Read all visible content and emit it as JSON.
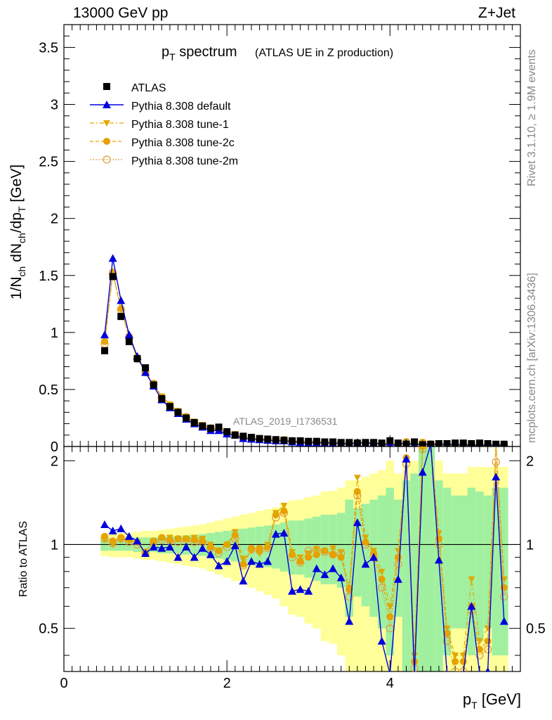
{
  "header": {
    "left": "13000 GeV pp",
    "right": "Z+Jet"
  },
  "side_text": {
    "rivet": "Rivet 3.1.10, ≥ 1.9M events",
    "mcplots": "mcplots.cern.ch [arXiv:1306.3436]"
  },
  "colors": {
    "data": "#000000",
    "default": "#0000dd",
    "tune1": "#e0a800",
    "tune2c": "#e8a000",
    "tune2m": "#e0a040",
    "band_inner": "#a0f0a0",
    "band_outer": "#ffff99"
  },
  "chart_data": {
    "type": "line",
    "title_main": "p",
    "title_main_sub": "T",
    "title_main_rest": " spectrum",
    "title_note": "(ATLAS UE in Z production)",
    "watermark": "ATLAS_2019_I1736531",
    "xlabel": "p",
    "xlabel_sub": "T",
    "xlabel_rest": " [GeV]",
    "ylabel_top": "1/N",
    "ylabel_top_full": "1/N_ch dN_ch/dp_T [GeV]",
    "ylabel_ratio": "Ratio to ATLAS",
    "xlim": [
      0,
      5.6
    ],
    "ylim_top": [
      0,
      3.7
    ],
    "ylim_ratio": [
      0.35,
      2.25
    ],
    "x_ticks": [
      "0",
      "2",
      "4"
    ],
    "y_ticks_top": [
      "0",
      "0.5",
      "1",
      "1.5",
      "2",
      "2.5",
      "3",
      "3.5"
    ],
    "y_ticks_ratio": [
      "0.5",
      "1",
      "2"
    ],
    "legend": [
      "ATLAS",
      "Pythia 8.308 default",
      "Pythia 8.308 tune-1",
      "Pythia 8.308 tune-2c",
      "Pythia 8.308 tune-2m"
    ],
    "x": [
      0.5,
      0.6,
      0.7,
      0.8,
      0.9,
      1.0,
      1.1,
      1.2,
      1.3,
      1.4,
      1.5,
      1.6,
      1.7,
      1.8,
      1.9,
      2.0,
      2.1,
      2.2,
      2.3,
      2.4,
      2.5,
      2.6,
      2.7,
      2.8,
      2.9,
      3.0,
      3.1,
      3.2,
      3.3,
      3.4,
      3.5,
      3.6,
      3.7,
      3.8,
      3.9,
      4.0,
      4.1,
      4.2,
      4.3,
      4.4,
      4.5,
      4.6,
      4.7,
      4.8,
      4.9,
      5.0,
      5.1,
      5.2,
      5.3,
      5.4
    ],
    "atlas": [
      0.84,
      1.49,
      1.14,
      0.92,
      0.77,
      0.69,
      0.54,
      0.42,
      0.35,
      0.3,
      0.25,
      0.21,
      0.18,
      0.16,
      0.17,
      0.13,
      0.1,
      0.09,
      0.08,
      0.07,
      0.065,
      0.06,
      0.055,
      0.05,
      0.05,
      0.045,
      0.045,
      0.04,
      0.04,
      0.035,
      0.035,
      0.03,
      0.035,
      0.035,
      0.03,
      0.05,
      0.03,
      0.02,
      0.04,
      0.015,
      0.02,
      0.025,
      0.025,
      0.03,
      0.03,
      0.025,
      0.03,
      0.025,
      0.02,
      0.02
    ],
    "series": [
      {
        "name": "Pythia 8.308 default",
        "values": [
          0.98,
          1.65,
          1.28,
          0.98,
          0.79,
          0.65,
          0.53,
          0.41,
          0.34,
          0.29,
          0.24,
          0.2,
          0.17,
          0.14,
          0.14,
          0.11,
          0.1,
          0.07,
          0.065,
          0.06,
          0.055,
          0.05,
          0.05,
          0.04,
          0.035,
          0.03,
          0.035,
          0.03,
          0.03,
          0.025,
          0.02,
          0.035,
          0.028,
          0.03,
          0.022,
          0.01,
          0.018,
          0.03,
          0.015,
          0.02,
          0.015,
          0.02,
          0.018,
          0.015,
          0.015,
          0.012,
          0.01,
          0.012,
          0.01,
          0.015
        ]
      },
      {
        "name": "Pythia 8.308 tune-1",
        "values": [
          0.92,
          1.52,
          1.2,
          0.96,
          0.78,
          0.65,
          0.55,
          0.44,
          0.37,
          0.31,
          0.26,
          0.22,
          0.19,
          0.16,
          0.16,
          0.13,
          0.11,
          0.085,
          0.075,
          0.065,
          0.065,
          0.06,
          0.06,
          0.05,
          0.045,
          0.04,
          0.04,
          0.037,
          0.038,
          0.032,
          0.025,
          0.035,
          0.03,
          0.03,
          0.025,
          0.02,
          0.022,
          0.04,
          0.012,
          0.035,
          0.02,
          0.02,
          0.015,
          0.015,
          0.015,
          0.015,
          0.012,
          0.012,
          0.01,
          0.012
        ]
      },
      {
        "name": "Pythia 8.308 tune-2c",
        "values": [
          0.92,
          1.53,
          1.21,
          0.96,
          0.77,
          0.65,
          0.55,
          0.43,
          0.36,
          0.31,
          0.26,
          0.21,
          0.18,
          0.16,
          0.15,
          0.13,
          0.1,
          0.083,
          0.075,
          0.065,
          0.063,
          0.058,
          0.058,
          0.048,
          0.043,
          0.04,
          0.04,
          0.036,
          0.036,
          0.031,
          0.024,
          0.034,
          0.03,
          0.03,
          0.024,
          0.02,
          0.021,
          0.039,
          0.011,
          0.034,
          0.02,
          0.02,
          0.015,
          0.015,
          0.015,
          0.014,
          0.012,
          0.012,
          0.01,
          0.012
        ]
      },
      {
        "name": "Pythia 8.308 tune-2m",
        "values": [
          0.9,
          1.52,
          1.2,
          0.96,
          0.77,
          0.65,
          0.55,
          0.43,
          0.36,
          0.3,
          0.26,
          0.21,
          0.18,
          0.16,
          0.15,
          0.12,
          0.1,
          0.082,
          0.074,
          0.064,
          0.062,
          0.057,
          0.057,
          0.047,
          0.043,
          0.04,
          0.04,
          0.036,
          0.035,
          0.031,
          0.024,
          0.033,
          0.03,
          0.03,
          0.024,
          0.02,
          0.021,
          0.038,
          0.011,
          0.033,
          0.02,
          0.02,
          0.015,
          0.015,
          0.015,
          0.014,
          0.012,
          0.012,
          0.01,
          0.012
        ]
      }
    ],
    "ratio_series": [
      {
        "name": "Pythia 8.308 default",
        "values": [
          1.18,
          1.12,
          1.14,
          1.07,
          1.03,
          0.93,
          0.98,
          0.97,
          0.98,
          0.9,
          0.98,
          0.9,
          0.97,
          0.92,
          0.84,
          0.87,
          0.99,
          0.74,
          0.87,
          0.85,
          0.87,
          1.09,
          1.1,
          0.68,
          0.69,
          0.68,
          0.82,
          0.78,
          0.82,
          0.76,
          0.53,
          1.2,
          0.85,
          0.9,
          0.45,
          0.2,
          0.75,
          2.03,
          0.3,
          1.82,
          2.5,
          0.88,
          0.3,
          0.2,
          0.3,
          0.6,
          0.3,
          0.35,
          1.75,
          0.53
        ]
      },
      {
        "name": "Pythia 8.308 tune-1",
        "values": [
          1.04,
          1.0,
          1.04,
          1.03,
          1.02,
          0.93,
          1.03,
          1.05,
          1.06,
          1.05,
          1.05,
          1.06,
          1.05,
          1.0,
          0.95,
          1.0,
          1.11,
          0.89,
          0.95,
          0.93,
          1.0,
          1.3,
          1.38,
          0.94,
          0.9,
          0.93,
          0.96,
          0.95,
          0.97,
          0.94,
          0.7,
          1.74,
          1.06,
          0.95,
          0.8,
          0.6,
          0.95,
          2.0,
          0.4,
          2.3,
          2.5,
          1.1,
          0.5,
          0.4,
          0.4,
          0.75,
          0.45,
          0.5,
          2.4,
          0.75
        ]
      },
      {
        "name": "Pythia 8.308 tune-2c",
        "values": [
          1.07,
          1.03,
          1.06,
          1.04,
          1.02,
          0.94,
          1.03,
          1.06,
          1.04,
          1.05,
          1.05,
          1.04,
          1.03,
          0.98,
          0.95,
          1.0,
          1.08,
          0.85,
          0.97,
          0.97,
          0.98,
          1.28,
          1.32,
          0.92,
          0.87,
          0.9,
          0.92,
          0.95,
          0.92,
          0.9,
          0.69,
          1.55,
          1.02,
          0.93,
          0.75,
          0.55,
          0.9,
          2.05,
          0.38,
          2.25,
          2.4,
          1.05,
          0.48,
          0.38,
          0.38,
          0.6,
          0.42,
          0.45,
          2.32,
          0.7
        ]
      },
      {
        "name": "Pythia 8.308 tune-2m",
        "values": [
          1.05,
          1.01,
          1.05,
          1.02,
          1.0,
          0.93,
          1.02,
          1.04,
          1.03,
          1.02,
          1.04,
          1.02,
          1.02,
          0.97,
          0.93,
          0.98,
          1.05,
          0.84,
          0.96,
          0.95,
          0.97,
          1.25,
          1.3,
          0.9,
          0.86,
          0.95,
          0.96,
          0.94,
          0.92,
          0.93,
          0.65,
          1.5,
          1.0,
          0.9,
          0.7,
          0.5,
          0.85,
          1.95,
          0.36,
          2.2,
          2.35,
          1.0,
          0.45,
          0.35,
          0.35,
          0.58,
          0.4,
          0.42,
          1.98,
          0.65
        ]
      }
    ],
    "band_inner": [
      0.05,
      0.05,
      0.05,
      0.05,
      0.06,
      0.06,
      0.06,
      0.07,
      0.07,
      0.07,
      0.08,
      0.08,
      0.09,
      0.1,
      0.11,
      0.12,
      0.13,
      0.14,
      0.15,
      0.16,
      0.17,
      0.18,
      0.2,
      0.22,
      0.22,
      0.24,
      0.26,
      0.28,
      0.28,
      0.3,
      0.45,
      0.35,
      0.4,
      0.45,
      0.5,
      0.6,
      0.45,
      0.7,
      0.8,
      1.2,
      1.3,
      0.7,
      0.6,
      0.5,
      0.5,
      0.6,
      0.55,
      0.5,
      0.6,
      0.6
    ],
    "band_outer": [
      0.09,
      0.1,
      0.1,
      0.1,
      0.11,
      0.12,
      0.12,
      0.13,
      0.14,
      0.15,
      0.16,
      0.17,
      0.18,
      0.2,
      0.22,
      0.24,
      0.26,
      0.28,
      0.3,
      0.32,
      0.34,
      0.36,
      0.4,
      0.44,
      0.45,
      0.48,
      0.5,
      0.55,
      0.56,
      0.6,
      0.7,
      0.7,
      0.75,
      0.8,
      0.85,
      1.0,
      0.8,
      1.0,
      1.0,
      1.3,
      1.4,
      1.0,
      0.8,
      0.8,
      0.8,
      0.9,
      0.9,
      0.9,
      0.9,
      0.9
    ]
  }
}
